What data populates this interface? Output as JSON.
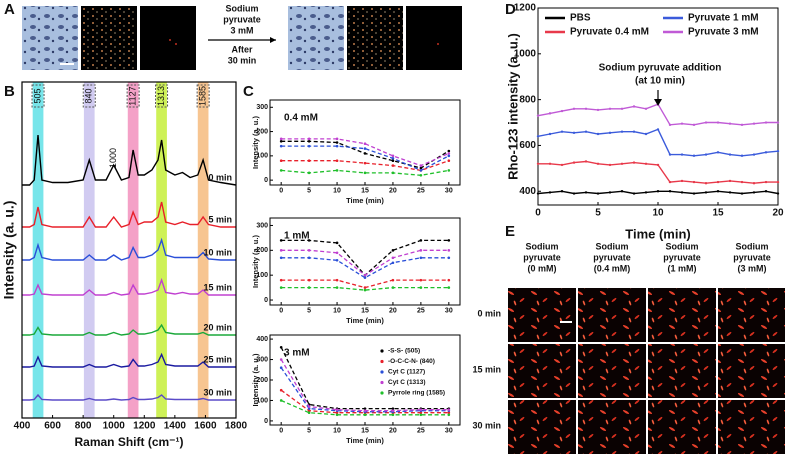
{
  "panel_labels": [
    "A",
    "B",
    "C",
    "D",
    "E"
  ],
  "panel_a": {
    "text_above": [
      "Sodium",
      "pyruvate",
      "3 mM"
    ],
    "text_below": [
      "After",
      "30 min"
    ]
  },
  "panel_e": {
    "columns": [
      [
        "Sodium",
        "pyruvate",
        "(0 mM)"
      ],
      [
        "Sodium",
        "pyruvate",
        "(0.4 mM)"
      ],
      [
        "Sodium",
        "pyruvate",
        "(1 mM)"
      ],
      [
        "Sodium",
        "pyruvate",
        "(3 mM)"
      ]
    ],
    "rows": [
      "0 min",
      "15 min",
      "30 min"
    ]
  },
  "chart_data": [
    {
      "type": "spectra",
      "xlabel": "Raman Shift (cm⁻¹)",
      "ylabel": "Intensity (a. u.)",
      "xlim": [
        400,
        1800
      ],
      "xticks": [
        400,
        600,
        800,
        1000,
        1200,
        1400,
        1600,
        1800
      ],
      "bands": {
        "centers": [
          505,
          840,
          1127,
          1313,
          1585
        ],
        "colors": [
          "#5fe0e6",
          "#c9c2ef",
          "#f291bd",
          "#c6ee3a",
          "#f6bb7e"
        ]
      },
      "peak_label": 1000,
      "x": [
        400,
        450,
        480,
        505,
        530,
        600,
        700,
        800,
        840,
        880,
        950,
        1000,
        1050,
        1100,
        1127,
        1160,
        1200,
        1250,
        1290,
        1313,
        1340,
        1400,
        1450,
        1500,
        1550,
        1585,
        1620,
        1700,
        1800
      ],
      "series": [
        {
          "name": "0 min",
          "color": "#000000",
          "values": [
            1,
            1,
            2,
            11,
            2,
            1.5,
            1.5,
            2,
            6,
            2,
            2,
            5,
            2,
            2.5,
            8,
            3,
            3,
            4,
            6,
            10,
            4,
            3,
            3.5,
            2.5,
            3,
            6,
            2,
            1.5,
            1
          ]
        },
        {
          "name": "5 min",
          "color": "#e8202a",
          "values": [
            1,
            1,
            1.5,
            5,
            1.5,
            1,
            1,
            1,
            3,
            1,
            1,
            3,
            1,
            1.5,
            4,
            1.5,
            2,
            2,
            3,
            6,
            2,
            1.5,
            2,
            1.5,
            1.5,
            3,
            1.5,
            1,
            1
          ]
        },
        {
          "name": "10 min",
          "color": "#2a4fd8",
          "values": [
            1,
            1,
            1.5,
            4,
            1.5,
            1,
            1,
            1,
            2,
            1,
            1,
            2,
            1,
            1.5,
            3.5,
            1.5,
            1.5,
            2,
            3,
            5,
            2,
            1.5,
            1.5,
            1.5,
            1.5,
            2.5,
            1.2,
            1,
            1
          ]
        },
        {
          "name": "15 min",
          "color": "#c040d0",
          "values": [
            1,
            1,
            1.2,
            3,
            1.2,
            1,
            1,
            1,
            2,
            1,
            1,
            1.5,
            1,
            1.2,
            3,
            1.2,
            1.2,
            1.5,
            2,
            4,
            1.5,
            1.2,
            1.5,
            1.2,
            1.2,
            2,
            1,
            1,
            1
          ]
        },
        {
          "name": "20 min",
          "color": "#1aa83a",
          "values": [
            1,
            1,
            1.2,
            2.5,
            1.2,
            1,
            1,
            1,
            1.5,
            1,
            1,
            1.5,
            1,
            1.2,
            2,
            1.2,
            1.2,
            1.5,
            2,
            3,
            1.5,
            1.2,
            1.2,
            1.2,
            1.2,
            1.5,
            1,
            1,
            1
          ]
        },
        {
          "name": "25 min",
          "color": "#1a1aa0",
          "values": [
            1,
            1,
            1.2,
            3,
            1.2,
            1,
            1,
            1,
            1.5,
            1,
            1,
            1.5,
            1,
            1.2,
            2.5,
            1.2,
            1.2,
            1.5,
            2,
            3.5,
            1.5,
            1.2,
            1.2,
            1.2,
            1.2,
            2,
            1,
            1,
            1
          ]
        },
        {
          "name": "30 min",
          "color": "#5a4ac8",
          "values": [
            1,
            1,
            1.1,
            2,
            1.1,
            1,
            1,
            1,
            1.3,
            1,
            1,
            1.2,
            1,
            1.1,
            1.5,
            1.1,
            1.1,
            1.2,
            1.5,
            2,
            1.2,
            1.1,
            1.1,
            1.1,
            1.1,
            1.3,
            1,
            1,
            1
          ]
        }
      ]
    },
    {
      "type": "line",
      "dashed": true,
      "title": "0.4 mM",
      "xlabel": "Time (min)",
      "ylabel": "Intensity (a. u.)",
      "x": [
        0,
        5,
        10,
        15,
        20,
        25,
        30
      ],
      "xlim": [
        -2,
        32
      ],
      "xticks": [
        0,
        5,
        10,
        15,
        20,
        25,
        30
      ],
      "ylim": [
        -20,
        330
      ],
      "yticks": [
        0,
        100,
        200,
        300
      ],
      "series": [
        {
          "color": "#000000",
          "values": [
            160,
            160,
            155,
            110,
            80,
            50,
            120
          ]
        },
        {
          "color": "#e8202a",
          "values": [
            80,
            80,
            80,
            70,
            60,
            40,
            80
          ]
        },
        {
          "color": "#2a4fd8",
          "values": [
            140,
            140,
            140,
            130,
            90,
            40,
            100
          ]
        },
        {
          "color": "#c040d0",
          "values": [
            170,
            170,
            170,
            150,
            100,
            60,
            110
          ]
        },
        {
          "color": "#1fbf2a",
          "values": [
            40,
            30,
            40,
            30,
            30,
            20,
            40
          ]
        }
      ]
    },
    {
      "type": "line",
      "dashed": true,
      "title": "1 mM",
      "xlabel": "Time (min)",
      "ylabel": "Intensity (a. u.)",
      "x": [
        0,
        5,
        10,
        15,
        20,
        25,
        30
      ],
      "xlim": [
        -2,
        32
      ],
      "xticks": [
        0,
        5,
        10,
        15,
        20,
        25,
        30
      ],
      "ylim": [
        -20,
        330
      ],
      "yticks": [
        0,
        100,
        200,
        300
      ],
      "series": [
        {
          "color": "#000000",
          "values": [
            240,
            240,
            230,
            100,
            200,
            240,
            240
          ]
        },
        {
          "color": "#e8202a",
          "values": [
            80,
            80,
            80,
            50,
            80,
            80,
            80
          ]
        },
        {
          "color": "#2a4fd8",
          "values": [
            170,
            170,
            160,
            90,
            150,
            170,
            170
          ]
        },
        {
          "color": "#c040d0",
          "values": [
            200,
            200,
            190,
            100,
            170,
            200,
            200
          ]
        },
        {
          "color": "#1fbf2a",
          "values": [
            50,
            50,
            50,
            40,
            50,
            50,
            50
          ]
        }
      ]
    },
    {
      "type": "line",
      "dashed": true,
      "title": "3 mM",
      "xlabel": "Time (min)",
      "ylabel": "Intensity (a. u.)",
      "legend": true,
      "x": [
        0,
        5,
        10,
        15,
        20,
        25,
        30
      ],
      "xlim": [
        -2,
        32
      ],
      "xticks": [
        0,
        5,
        10,
        15,
        20,
        25,
        30
      ],
      "ylim": [
        -20,
        420
      ],
      "yticks": [
        0,
        100,
        200,
        300,
        400
      ],
      "series": [
        {
          "name": "-S-S- (505)",
          "color": "#000000",
          "values": [
            360,
            80,
            60,
            60,
            60,
            60,
            60
          ]
        },
        {
          "name": "-O-C-C-N- (840)",
          "color": "#e8202a",
          "values": [
            150,
            50,
            40,
            40,
            40,
            40,
            40
          ]
        },
        {
          "name": "Cyt C (1127)",
          "color": "#2a4fd8",
          "values": [
            260,
            60,
            50,
            45,
            45,
            50,
            50
          ]
        },
        {
          "name": "Cyt C (1313)",
          "color": "#c040d0",
          "values": [
            300,
            70,
            55,
            50,
            50,
            55,
            55
          ]
        },
        {
          "name": "Pyrrole ring (1585)",
          "color": "#1fbf2a",
          "values": [
            100,
            40,
            30,
            30,
            30,
            30,
            30
          ]
        }
      ]
    },
    {
      "type": "line",
      "xlabel": "Time (min)",
      "ylabel": "Rho-123 intensity (a. u.)",
      "legend": "upper center",
      "x": [
        0,
        1,
        2,
        3,
        4,
        5,
        6,
        7,
        8,
        9,
        10,
        11,
        12,
        13,
        14,
        15,
        16,
        17,
        18,
        19,
        20
      ],
      "xlim": [
        0,
        20
      ],
      "xticks": [
        0,
        5,
        10,
        15,
        20
      ],
      "ylim": [
        340,
        1200
      ],
      "yticks": [
        400,
        600,
        800,
        1000,
        1200
      ],
      "annotation": {
        "lines": [
          "Sodium pyruvate addition",
          "(at 10 min)"
        ],
        "x": 10
      },
      "series": [
        {
          "name": "PBS",
          "color": "#000000",
          "values": [
            390,
            395,
            400,
            390,
            395,
            390,
            395,
            400,
            390,
            395,
            400,
            400,
            395,
            390,
            395,
            400,
            395,
            390,
            395,
            400,
            390
          ]
        },
        {
          "name": "Pyruvate 0.4 mM",
          "color": "#e8394a",
          "values": [
            520,
            520,
            515,
            525,
            530,
            520,
            515,
            520,
            525,
            520,
            515,
            440,
            445,
            440,
            435,
            440,
            445,
            440,
            435,
            440,
            440
          ]
        },
        {
          "name": "Pyruvate 1 mM",
          "color": "#3b5bdb",
          "values": [
            640,
            650,
            660,
            655,
            660,
            650,
            655,
            660,
            660,
            650,
            670,
            560,
            560,
            555,
            560,
            570,
            560,
            555,
            560,
            570,
            575
          ]
        },
        {
          "name": "Pyruvate 3 mM",
          "color": "#c05ad6",
          "values": [
            730,
            740,
            750,
            760,
            760,
            755,
            760,
            760,
            770,
            760,
            780,
            690,
            695,
            690,
            700,
            700,
            695,
            690,
            695,
            700,
            700
          ]
        }
      ]
    }
  ]
}
